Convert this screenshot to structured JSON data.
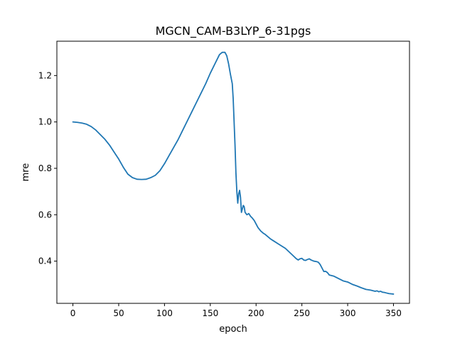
{
  "chart_data": {
    "type": "line",
    "title": "MGCN_CAM-B3LYP_6-31pgs",
    "xlabel": "epoch",
    "ylabel": "mre",
    "xlim": [
      -17.5,
      367.5
    ],
    "ylim": [
      0.218,
      1.348
    ],
    "xticks": [
      0,
      50,
      100,
      150,
      200,
      250,
      300,
      350
    ],
    "yticks": [
      0.4,
      0.6,
      0.8,
      1.0,
      1.2
    ],
    "ytick_labels": [
      "0.4",
      "0.6",
      "0.8",
      "1.0",
      "1.2"
    ],
    "grid": false,
    "legend": "none",
    "series_color": "#1f77b4",
    "x": [
      0,
      5,
      10,
      15,
      20,
      25,
      30,
      35,
      40,
      45,
      50,
      55,
      60,
      65,
      70,
      75,
      80,
      85,
      90,
      95,
      100,
      105,
      110,
      115,
      120,
      125,
      130,
      135,
      140,
      145,
      150,
      155,
      160,
      163,
      166,
      168,
      170,
      172,
      174,
      175,
      176,
      177,
      178,
      179,
      180,
      181,
      182,
      183,
      184,
      185,
      186,
      187,
      188,
      190,
      192,
      194,
      196,
      198,
      200,
      202,
      205,
      208,
      210,
      213,
      216,
      220,
      224,
      228,
      232,
      236,
      240,
      244,
      246,
      248,
      250,
      252,
      254,
      256,
      258,
      260,
      263,
      266,
      268,
      270,
      272,
      274,
      276,
      278,
      280,
      285,
      290,
      295,
      300,
      305,
      310,
      315,
      320,
      325,
      330,
      332,
      334,
      336,
      338,
      340,
      342,
      345,
      350
    ],
    "y": [
      1.0,
      0.998,
      0.995,
      0.99,
      0.98,
      0.965,
      0.945,
      0.925,
      0.9,
      0.87,
      0.84,
      0.805,
      0.775,
      0.76,
      0.753,
      0.752,
      0.753,
      0.76,
      0.77,
      0.79,
      0.82,
      0.855,
      0.89,
      0.925,
      0.965,
      1.005,
      1.045,
      1.085,
      1.125,
      1.165,
      1.21,
      1.25,
      1.29,
      1.3,
      1.3,
      1.285,
      1.25,
      1.205,
      1.165,
      1.1,
      1.0,
      0.9,
      0.78,
      0.7,
      0.65,
      0.69,
      0.705,
      0.675,
      0.61,
      0.625,
      0.64,
      0.635,
      0.61,
      0.6,
      0.605,
      0.593,
      0.585,
      0.575,
      0.56,
      0.545,
      0.53,
      0.52,
      0.515,
      0.505,
      0.495,
      0.485,
      0.475,
      0.465,
      0.455,
      0.44,
      0.425,
      0.41,
      0.405,
      0.41,
      0.412,
      0.405,
      0.403,
      0.407,
      0.41,
      0.405,
      0.4,
      0.398,
      0.395,
      0.385,
      0.37,
      0.355,
      0.356,
      0.35,
      0.34,
      0.335,
      0.325,
      0.315,
      0.31,
      0.3,
      0.293,
      0.285,
      0.278,
      0.275,
      0.27,
      0.272,
      0.268,
      0.27,
      0.266,
      0.265,
      0.263,
      0.26,
      0.258
    ]
  }
}
